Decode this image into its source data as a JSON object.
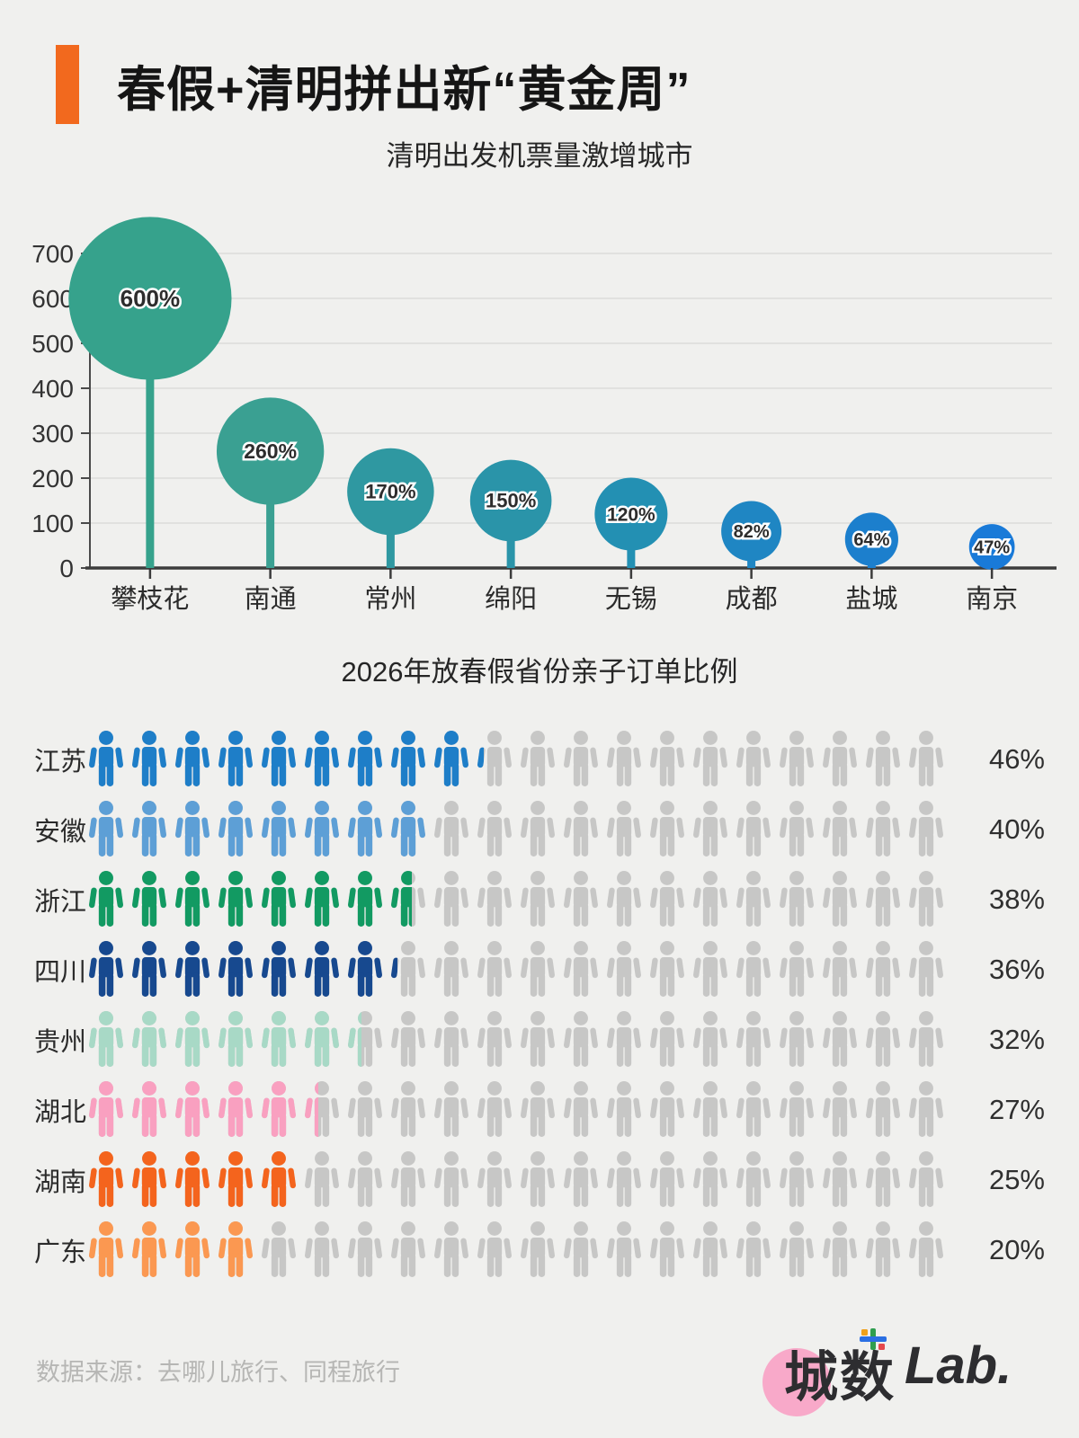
{
  "page": {
    "background": "#f0f0ee"
  },
  "header": {
    "title": "春假+清明拼出新“黄金周”",
    "accent_color": "#f2691e"
  },
  "chart_data": [
    {
      "type": "bar",
      "variant": "lollipop-bubble",
      "title": "清明出发机票量激增城市",
      "categories": [
        "攀枝花",
        "南通",
        "常州",
        "绵阳",
        "无锡",
        "成都",
        "盐城",
        "南京"
      ],
      "values": [
        600,
        260,
        170,
        150,
        120,
        82,
        64,
        47
      ],
      "labels": [
        "600%",
        "260%",
        "170%",
        "150%",
        "120%",
        "82%",
        "64%",
        "47%"
      ],
      "ylim": [
        0,
        700
      ],
      "yticks": [
        0,
        100,
        200,
        300,
        400,
        500,
        600,
        700
      ],
      "grid": true,
      "legend": "none",
      "bubble_colors": [
        "#36a28c",
        "#3aa092",
        "#2f98a1",
        "#2a94a9",
        "#2390b3",
        "#1f86c3",
        "#1c7fcd",
        "#197ad8"
      ],
      "grid_color": "#dcdcda",
      "axis_color": "#3c3c3c",
      "tick_label_color": "#333333",
      "value_label_color": "#2d2d2d"
    },
    {
      "type": "bar",
      "variant": "pictogram",
      "title": "2026年放春假省份亲子订单比例",
      "categories": [
        "江苏",
        "安徽",
        "浙江",
        "四川",
        "贵州",
        "湖北",
        "湖南",
        "广东"
      ],
      "values": [
        46,
        40,
        38,
        36,
        32,
        27,
        25,
        20
      ],
      "labels": [
        "46%",
        "40%",
        "38%",
        "36%",
        "32%",
        "27%",
        "25%",
        "20%"
      ],
      "icons_per_row": 20,
      "percent_per_icon": 5,
      "row_colors": [
        "#1e7ec8",
        "#5d9fd6",
        "#129a62",
        "#17498f",
        "#a8d9c6",
        "#f9a0c0",
        "#f4641d",
        "#fb9851"
      ],
      "empty_icon_color": "#c7c7c6"
    }
  ],
  "footer": {
    "source": "数据来源：去哪儿旅行、同程旅行",
    "logo_cn": "城数",
    "logo_en": "Lab.",
    "logo_circle_color": "#f8a9c9"
  }
}
